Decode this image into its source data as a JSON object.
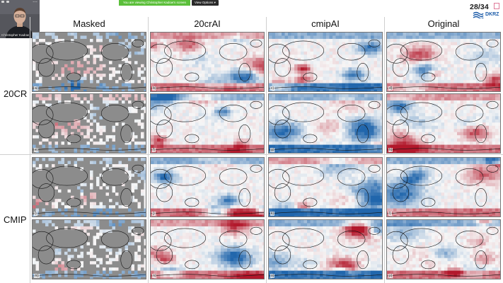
{
  "screen_share": {
    "banner_text": "You are viewing Christopher Kadow's screen",
    "view_options_label": "View Options ▾"
  },
  "webcam": {
    "name": "Christopher Kadow"
  },
  "slide": {
    "page_counter": "28/34",
    "logo_text": "DKRZ",
    "columns": [
      "Masked",
      "20crAI",
      "cmipAI",
      "Original"
    ],
    "row_groups": [
      "20CR",
      "CMIP"
    ],
    "panels": [
      {
        "letter": "a)",
        "kind": "masked",
        "seed": 11
      },
      {
        "letter": "b)",
        "kind": "full",
        "seed": 12
      },
      {
        "letter": "c)",
        "kind": "full",
        "seed": 13
      },
      {
        "letter": "d)",
        "kind": "full",
        "seed": 14
      },
      {
        "letter": "e)",
        "kind": "masked",
        "seed": 21
      },
      {
        "letter": "f)",
        "kind": "full",
        "seed": 22
      },
      {
        "letter": "g)",
        "kind": "full",
        "seed": 23
      },
      {
        "letter": "h)",
        "kind": "full",
        "seed": 24
      },
      {
        "letter": "i)",
        "kind": "masked",
        "seed": 31
      },
      {
        "letter": "j)",
        "kind": "full",
        "seed": 32
      },
      {
        "letter": "k)",
        "kind": "full",
        "seed": 33
      },
      {
        "letter": "l)",
        "kind": "full",
        "seed": 34
      },
      {
        "letter": "m)",
        "kind": "masked",
        "seed": 41
      },
      {
        "letter": "n)",
        "kind": "full",
        "seed": 42
      },
      {
        "letter": "o)",
        "kind": "full",
        "seed": 43
      },
      {
        "letter": "p)",
        "kind": "full",
        "seed": 44
      }
    ]
  },
  "colors": {
    "warm": "#b2182b",
    "cool": "#2166ac",
    "mask_gray": "#8c8c8c",
    "coast": "#111111"
  }
}
